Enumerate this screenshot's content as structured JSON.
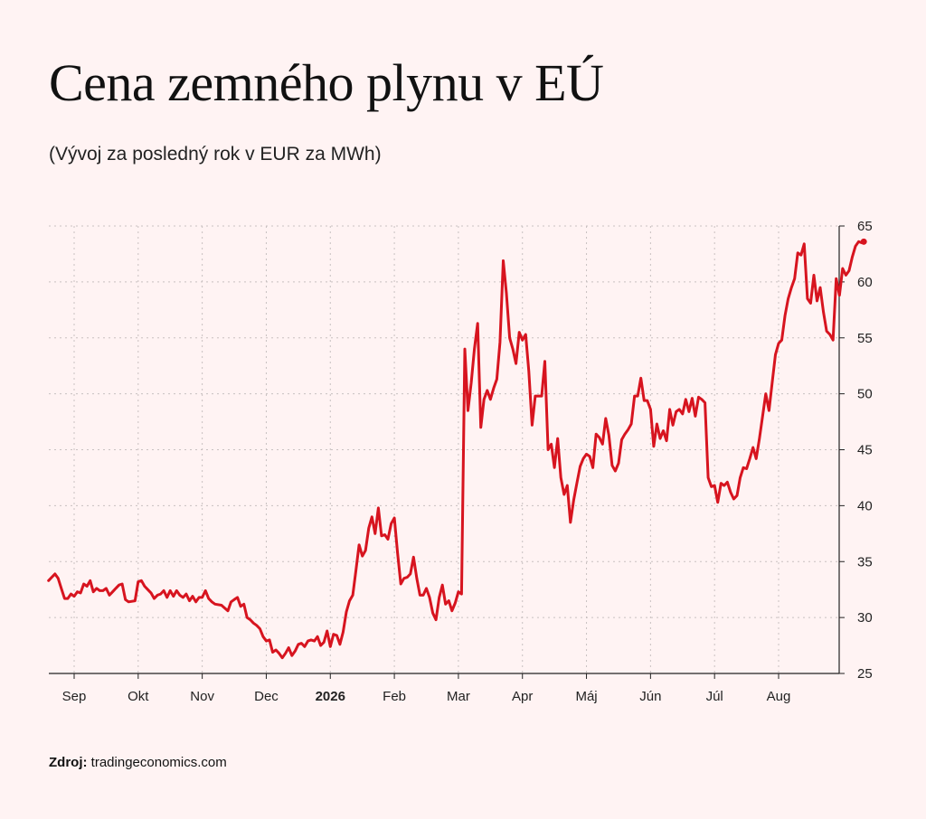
{
  "header": {
    "title": "Cena zemného plynu v EÚ",
    "subtitle": "(Vývoj za posledný rok v EUR za MWh)"
  },
  "footer": {
    "source_label": "Zdroj:",
    "source_value": "tradingeconomics.com"
  },
  "colors": {
    "line": "#d7141f",
    "background": "#fff3f3",
    "grid": "#c8c0c0",
    "axis": "#222222"
  },
  "chart_data": {
    "type": "line",
    "title": "Cena zemného plynu v EÚ",
    "subtitle": "(Vývoj za posledný rok v EUR za MWh)",
    "xlabel": "",
    "ylabel": "",
    "ylim": [
      25,
      65
    ],
    "y_ticks": [
      25,
      30,
      35,
      40,
      45,
      50,
      55,
      60,
      65
    ],
    "y_axis_position": "right",
    "grid": true,
    "x_ticks": [
      {
        "label": "Sep",
        "month": 1,
        "bold": false
      },
      {
        "label": "Okt",
        "month": 2,
        "bold": false
      },
      {
        "label": "Nov",
        "month": 3,
        "bold": false
      },
      {
        "label": "Dec",
        "month": 4,
        "bold": false
      },
      {
        "label": "2026",
        "month": 5,
        "bold": true
      },
      {
        "label": "Feb",
        "month": 6,
        "bold": false
      },
      {
        "label": "Mar",
        "month": 7,
        "bold": false
      },
      {
        "label": "Apr",
        "month": 8,
        "bold": false
      },
      {
        "label": "Máj",
        "month": 9,
        "bold": false
      },
      {
        "label": "Jún",
        "month": 10,
        "bold": false
      },
      {
        "label": "Júl",
        "month": 11,
        "bold": false
      },
      {
        "label": "Aug",
        "month": 12,
        "bold": false
      }
    ],
    "xlim": [
      0.6,
      12.95
    ],
    "series": [
      {
        "points": [
          [
            0.6,
            33.3
          ],
          [
            0.65,
            33.6
          ],
          [
            0.7,
            33.9
          ],
          [
            0.75,
            33.5
          ],
          [
            0.8,
            32.6
          ],
          [
            0.85,
            31.7
          ],
          [
            0.9,
            31.7
          ],
          [
            0.95,
            32.1
          ],
          [
            1.0,
            31.9
          ],
          [
            1.05,
            32.3
          ],
          [
            1.1,
            32.2
          ],
          [
            1.15,
            33.0
          ],
          [
            1.2,
            32.8
          ],
          [
            1.25,
            33.3
          ],
          [
            1.3,
            32.3
          ],
          [
            1.35,
            32.6
          ],
          [
            1.4,
            32.4
          ],
          [
            1.45,
            32.4
          ],
          [
            1.5,
            32.6
          ],
          [
            1.55,
            32.0
          ],
          [
            1.6,
            32.3
          ],
          [
            1.65,
            32.6
          ],
          [
            1.7,
            32.9
          ],
          [
            1.75,
            33.0
          ],
          [
            1.8,
            31.6
          ],
          [
            1.85,
            31.4
          ],
          [
            1.95,
            31.5
          ],
          [
            2.0,
            33.2
          ],
          [
            2.05,
            33.3
          ],
          [
            2.1,
            32.8
          ],
          [
            2.15,
            32.5
          ],
          [
            2.2,
            32.2
          ],
          [
            2.25,
            31.7
          ],
          [
            2.3,
            32.0
          ],
          [
            2.35,
            32.1
          ],
          [
            2.4,
            32.4
          ],
          [
            2.45,
            31.8
          ],
          [
            2.5,
            32.4
          ],
          [
            2.55,
            31.9
          ],
          [
            2.6,
            32.4
          ],
          [
            2.65,
            32.0
          ],
          [
            2.7,
            31.8
          ],
          [
            2.75,
            32.1
          ],
          [
            2.8,
            31.5
          ],
          [
            2.85,
            31.9
          ],
          [
            2.9,
            31.4
          ],
          [
            2.95,
            31.8
          ],
          [
            3.0,
            31.8
          ],
          [
            3.05,
            32.4
          ],
          [
            3.1,
            31.7
          ],
          [
            3.15,
            31.4
          ],
          [
            3.2,
            31.2
          ],
          [
            3.3,
            31.1
          ],
          [
            3.4,
            30.6
          ],
          [
            3.45,
            31.4
          ],
          [
            3.5,
            31.6
          ],
          [
            3.55,
            31.8
          ],
          [
            3.6,
            31.0
          ],
          [
            3.65,
            31.2
          ],
          [
            3.7,
            30.0
          ],
          [
            3.75,
            29.8
          ],
          [
            3.8,
            29.5
          ],
          [
            3.85,
            29.3
          ],
          [
            3.9,
            29.0
          ],
          [
            3.95,
            28.3
          ],
          [
            4.0,
            27.9
          ],
          [
            4.05,
            28.0
          ],
          [
            4.1,
            26.9
          ],
          [
            4.15,
            27.1
          ],
          [
            4.2,
            26.8
          ],
          [
            4.25,
            26.4
          ],
          [
            4.3,
            26.8
          ],
          [
            4.35,
            27.3
          ],
          [
            4.4,
            26.6
          ],
          [
            4.45,
            27.0
          ],
          [
            4.5,
            27.6
          ],
          [
            4.55,
            27.7
          ],
          [
            4.6,
            27.4
          ],
          [
            4.65,
            27.9
          ],
          [
            4.7,
            28.0
          ],
          [
            4.75,
            27.9
          ],
          [
            4.8,
            28.3
          ],
          [
            4.85,
            27.5
          ],
          [
            4.9,
            27.8
          ],
          [
            4.95,
            28.8
          ],
          [
            5.0,
            27.4
          ],
          [
            5.05,
            28.5
          ],
          [
            5.1,
            28.4
          ],
          [
            5.15,
            27.6
          ],
          [
            5.2,
            28.7
          ],
          [
            5.25,
            30.5
          ],
          [
            5.3,
            31.5
          ],
          [
            5.35,
            32.0
          ],
          [
            5.4,
            34.2
          ],
          [
            5.45,
            36.5
          ],
          [
            5.5,
            35.5
          ],
          [
            5.55,
            36.0
          ],
          [
            5.6,
            38.0
          ],
          [
            5.65,
            39.0
          ],
          [
            5.7,
            37.5
          ],
          [
            5.75,
            39.8
          ],
          [
            5.8,
            37.3
          ],
          [
            5.85,
            37.4
          ],
          [
            5.9,
            37.0
          ],
          [
            5.95,
            38.4
          ],
          [
            6.0,
            38.9
          ],
          [
            6.05,
            35.8
          ],
          [
            6.1,
            33.0
          ],
          [
            6.15,
            33.5
          ],
          [
            6.2,
            33.6
          ],
          [
            6.25,
            33.9
          ],
          [
            6.3,
            35.4
          ],
          [
            6.35,
            33.5
          ],
          [
            6.4,
            32.0
          ],
          [
            6.45,
            32.0
          ],
          [
            6.5,
            32.6
          ],
          [
            6.55,
            31.8
          ],
          [
            6.6,
            30.4
          ],
          [
            6.65,
            29.8
          ],
          [
            6.7,
            31.8
          ],
          [
            6.75,
            32.9
          ],
          [
            6.8,
            31.2
          ],
          [
            6.85,
            31.5
          ],
          [
            6.9,
            30.6
          ],
          [
            6.95,
            31.3
          ],
          [
            7.0,
            32.3
          ],
          [
            7.05,
            32.1
          ],
          [
            7.1,
            54.0
          ],
          [
            7.15,
            48.5
          ],
          [
            7.2,
            51.0
          ],
          [
            7.25,
            54.0
          ],
          [
            7.3,
            56.3
          ],
          [
            7.35,
            47.0
          ],
          [
            7.4,
            49.5
          ],
          [
            7.45,
            50.3
          ],
          [
            7.5,
            49.5
          ],
          [
            7.55,
            50.5
          ],
          [
            7.6,
            51.3
          ],
          [
            7.65,
            54.6
          ],
          [
            7.7,
            61.9
          ],
          [
            7.75,
            59.0
          ],
          [
            7.8,
            55.0
          ],
          [
            7.85,
            54.0
          ],
          [
            7.9,
            52.7
          ],
          [
            7.95,
            55.5
          ],
          [
            8.0,
            54.8
          ],
          [
            8.05,
            55.3
          ],
          [
            8.1,
            52.0
          ],
          [
            8.15,
            47.2
          ],
          [
            8.2,
            49.8
          ],
          [
            8.25,
            49.8
          ],
          [
            8.3,
            49.8
          ],
          [
            8.35,
            52.9
          ],
          [
            8.4,
            45.0
          ],
          [
            8.45,
            45.5
          ],
          [
            8.5,
            43.4
          ],
          [
            8.55,
            46.0
          ],
          [
            8.6,
            42.5
          ],
          [
            8.65,
            41.0
          ],
          [
            8.7,
            41.8
          ],
          [
            8.75,
            38.5
          ],
          [
            8.8,
            40.5
          ],
          [
            8.85,
            42.0
          ],
          [
            8.9,
            43.5
          ],
          [
            8.95,
            44.2
          ],
          [
            9.0,
            44.6
          ],
          [
            9.05,
            44.4
          ],
          [
            9.1,
            43.4
          ],
          [
            9.15,
            46.4
          ],
          [
            9.2,
            46.1
          ],
          [
            9.25,
            45.5
          ],
          [
            9.3,
            47.8
          ],
          [
            9.35,
            46.3
          ],
          [
            9.4,
            43.6
          ],
          [
            9.45,
            43.1
          ],
          [
            9.5,
            43.8
          ],
          [
            9.55,
            45.9
          ],
          [
            9.6,
            46.4
          ],
          [
            9.65,
            46.8
          ],
          [
            9.7,
            47.3
          ],
          [
            9.75,
            49.8
          ],
          [
            9.8,
            49.8
          ],
          [
            9.85,
            51.4
          ],
          [
            9.9,
            49.4
          ],
          [
            9.95,
            49.4
          ],
          [
            10.0,
            48.6
          ],
          [
            10.05,
            45.3
          ],
          [
            10.1,
            47.3
          ],
          [
            10.15,
            46.0
          ],
          [
            10.2,
            46.7
          ],
          [
            10.25,
            45.8
          ],
          [
            10.3,
            48.6
          ],
          [
            10.35,
            47.2
          ],
          [
            10.4,
            48.4
          ],
          [
            10.45,
            48.6
          ],
          [
            10.5,
            48.2
          ],
          [
            10.55,
            49.5
          ],
          [
            10.6,
            48.4
          ],
          [
            10.65,
            49.6
          ],
          [
            10.7,
            48.0
          ],
          [
            10.75,
            49.7
          ],
          [
            10.8,
            49.5
          ],
          [
            10.85,
            49.2
          ],
          [
            10.9,
            42.5
          ],
          [
            10.95,
            41.7
          ],
          [
            11.0,
            41.8
          ],
          [
            11.05,
            40.3
          ],
          [
            11.1,
            42.0
          ],
          [
            11.15,
            41.8
          ],
          [
            11.2,
            42.1
          ],
          [
            11.25,
            41.2
          ],
          [
            11.3,
            40.6
          ],
          [
            11.35,
            40.9
          ],
          [
            11.4,
            42.5
          ],
          [
            11.45,
            43.4
          ],
          [
            11.5,
            43.3
          ],
          [
            11.55,
            44.2
          ],
          [
            11.6,
            45.2
          ],
          [
            11.65,
            44.2
          ],
          [
            11.7,
            46.0
          ],
          [
            11.75,
            48.0
          ],
          [
            11.8,
            50.0
          ],
          [
            11.85,
            48.5
          ],
          [
            11.9,
            51.0
          ],
          [
            11.95,
            53.5
          ],
          [
            12.0,
            54.5
          ],
          [
            12.05,
            54.8
          ],
          [
            12.1,
            57.0
          ],
          [
            12.15,
            58.5
          ],
          [
            12.2,
            59.5
          ],
          [
            12.25,
            60.3
          ],
          [
            12.3,
            62.6
          ],
          [
            12.35,
            62.4
          ],
          [
            12.4,
            63.4
          ],
          [
            12.45,
            58.5
          ],
          [
            12.5,
            58.1
          ],
          [
            12.55,
            60.6
          ],
          [
            12.6,
            58.3
          ],
          [
            12.65,
            59.5
          ],
          [
            12.7,
            57.3
          ],
          [
            12.75,
            55.6
          ],
          [
            12.8,
            55.3
          ],
          [
            12.85,
            54.8
          ],
          [
            12.9,
            60.3
          ]
        ]
      }
    ],
    "tail": [
      [
        12.9,
        60.3
      ],
      [
        12.95,
        58.8
      ],
      [
        13.0,
        61.2
      ],
      [
        13.05,
        60.6
      ],
      [
        13.1,
        61.0
      ],
      [
        13.15,
        62.2
      ],
      [
        13.2,
        63.2
      ],
      [
        13.25,
        63.6
      ],
      [
        13.3,
        63.5
      ]
    ],
    "last_point": [
      13.33,
      63.6
    ]
  }
}
